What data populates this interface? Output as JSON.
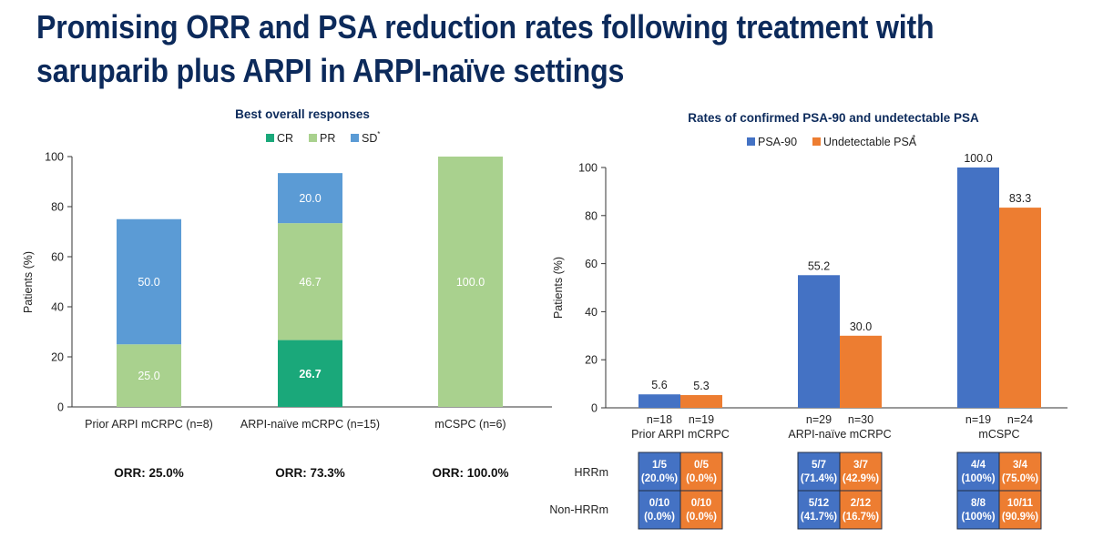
{
  "slide": {
    "title_line1": "Promising ORR and PSA reduction rates following treatment with",
    "title_line2": "saruparib plus ARPI in ARPI-naïve settings"
  },
  "colors": {
    "title": "#0c2a5b",
    "cr": "#1aa87a",
    "pr": "#a9d18e",
    "sd": "#5b9bd5",
    "psa90": "#4472c4",
    "undetectable": "#ed7d31"
  },
  "chart_data": [
    {
      "type": "bar",
      "stacked": true,
      "title": "Best overall responses",
      "ylabel": "Patients (%)",
      "ylim": [
        0,
        100
      ],
      "yticks": [
        0,
        20,
        40,
        60,
        80,
        100
      ],
      "categories": [
        "Prior ARPI mCRPC (n=8)",
        "ARPI-naïve mCRPC (n=15)",
        "mCSPC (n=6)"
      ],
      "legend": [
        {
          "label": "CR",
          "sup": ""
        },
        {
          "label": "PR",
          "sup": ""
        },
        {
          "label": "SD",
          "sup": "*"
        }
      ],
      "series": [
        {
          "name": "CR",
          "values": [
            null,
            26.7,
            null
          ]
        },
        {
          "name": "PR",
          "values": [
            25.0,
            46.7,
            100.0
          ]
        },
        {
          "name": "SD",
          "values": [
            50.0,
            20.0,
            null
          ]
        }
      ],
      "value_labels": [
        [
          "",
          "26.7",
          ""
        ],
        [
          "25.0",
          "46.7",
          "100.0"
        ],
        [
          "50.0",
          "20.0",
          ""
        ]
      ],
      "orr": [
        "ORR: 25.0%",
        "ORR: 73.3%",
        "ORR: 100.0%"
      ]
    },
    {
      "type": "bar",
      "title": "Rates of confirmed PSA-90 and undetectable PSA",
      "ylabel": "Patients (%)",
      "ylim": [
        0,
        100
      ],
      "yticks": [
        0,
        20,
        40,
        60,
        80,
        100
      ],
      "categories": [
        "Prior ARPI mCRPC",
        "ARPI-naïve mCRPC",
        "mCSPC"
      ],
      "legend": [
        {
          "label": "PSA-90",
          "sup": ""
        },
        {
          "label": "Undetectable PSA",
          "sup": "†"
        }
      ],
      "series": [
        {
          "name": "PSA-90",
          "values": [
            5.6,
            55.2,
            100.0
          ],
          "labels": [
            "5.6",
            "55.2",
            "100.0"
          ],
          "n": [
            "n=18",
            "n=29",
            "n=19"
          ]
        },
        {
          "name": "Undetectable PSA",
          "values": [
            5.3,
            30.0,
            83.3
          ],
          "labels": [
            "5.3",
            "30.0",
            "83.3"
          ],
          "n": [
            "n=19",
            "n=30",
            "n=24"
          ]
        }
      ],
      "subgroup_table": {
        "rows": [
          "HRRm",
          "Non-HRRm"
        ],
        "cells": [
          [
            [
              [
                "1/5",
                "(20.0%)"
              ],
              [
                "0/5",
                "(0.0%)"
              ]
            ],
            [
              [
                "5/7",
                "(71.4%)"
              ],
              [
                "3/7",
                "(42.9%)"
              ]
            ],
            [
              [
                "4/4",
                "(100%)"
              ],
              [
                "3/4",
                "(75.0%)"
              ]
            ]
          ],
          [
            [
              [
                "0/10",
                "(0.0%)"
              ],
              [
                "0/10",
                "(0.0%)"
              ]
            ],
            [
              [
                "5/12",
                "(41.7%)"
              ],
              [
                "2/12",
                "(16.7%)"
              ]
            ],
            [
              [
                "8/8",
                "(100%)"
              ],
              [
                "10/11",
                "(90.9%)"
              ]
            ]
          ]
        ]
      }
    }
  ]
}
